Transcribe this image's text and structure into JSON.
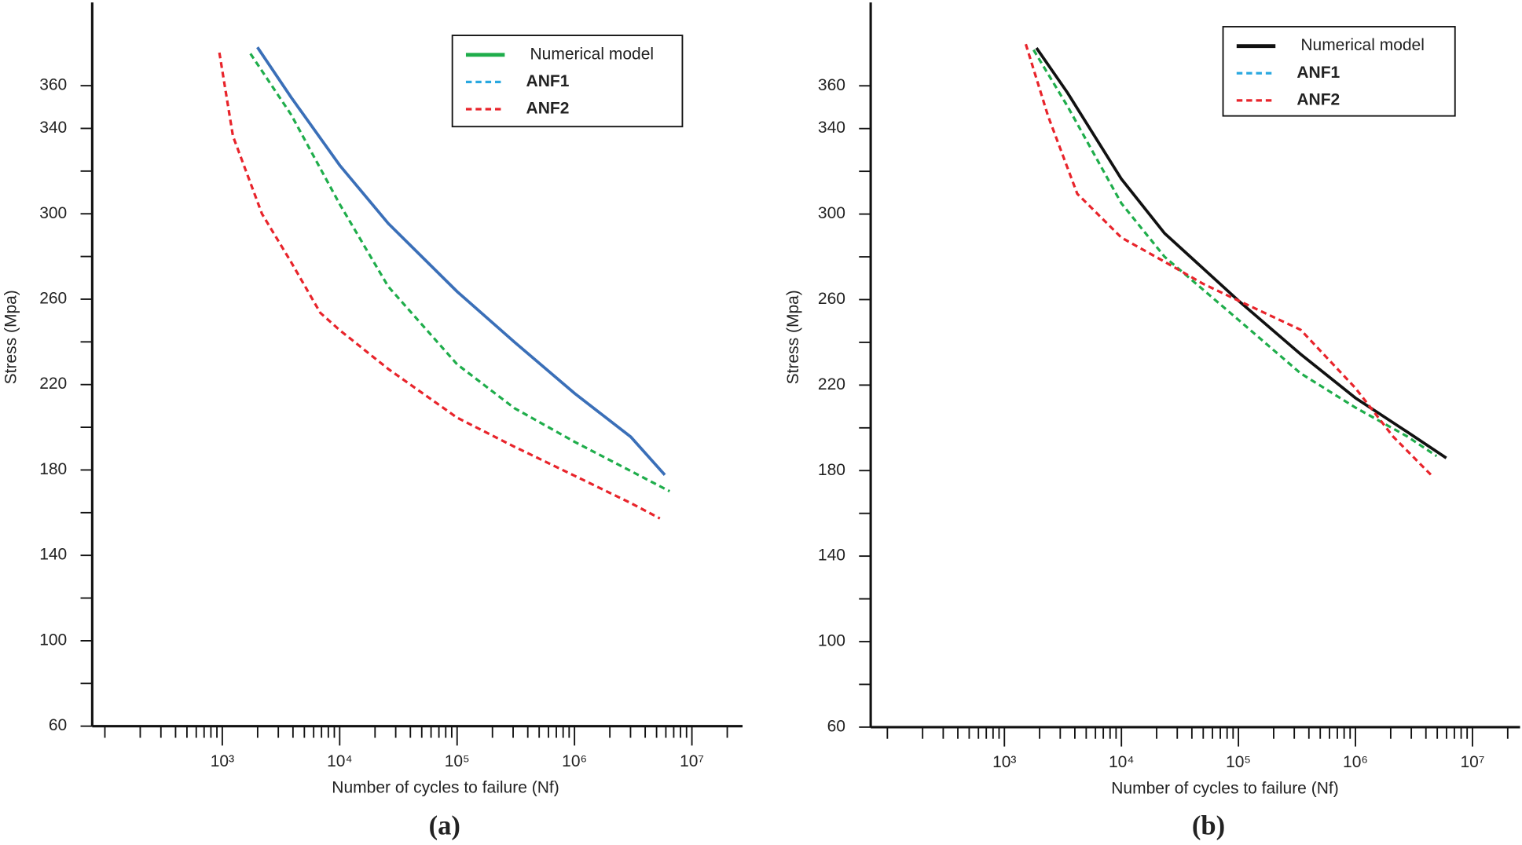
{
  "chart_data": [
    {
      "type": "line",
      "caption": "(a)",
      "xlabel": "Number of cycles to failure (Nf)",
      "ylabel": "Stress (Mpa)",
      "xscale": "log",
      "xlim": [
        78,
        27000000
      ],
      "ylim": [
        60,
        399
      ],
      "xticks": [
        {
          "value": 1000,
          "label": "10³"
        },
        {
          "value": 10000,
          "label": "10⁴"
        },
        {
          "value": 100000,
          "label": "10⁵"
        },
        {
          "value": 1000000,
          "label": "10⁶"
        },
        {
          "value": 10000000,
          "label": "10⁷"
        }
      ],
      "xminorticks": [
        100,
        200,
        300,
        400,
        500,
        600,
        700,
        800,
        900,
        2000,
        3000,
        4000,
        5000,
        6000,
        7000,
        8000,
        9000,
        20000,
        30000,
        40000,
        50000,
        60000,
        70000,
        80000,
        90000,
        200000,
        300000,
        400000,
        500000,
        600000,
        700000,
        800000,
        900000,
        2000000,
        3000000,
        4000000,
        5000000,
        6000000,
        7000000,
        8000000,
        9000000,
        20000000
      ],
      "yticks": [
        60,
        100,
        140,
        180,
        220,
        260,
        300,
        340,
        360
      ],
      "yminorticks": [
        80,
        120,
        160,
        200,
        240,
        280,
        320
      ],
      "series": [
        {
          "name": "Numerical model",
          "color": "#3a6fb8",
          "legend_color": "#1fad4b",
          "dashed": false,
          "x": [
            1990,
            3860,
            10000,
            25900,
            100000,
            307000,
            1000000,
            3010000,
            5880000
          ],
          "values": [
            378,
            354.5,
            322.7,
            295.5,
            263.6,
            240,
            215.9,
            195.5,
            177.7
          ]
        },
        {
          "name": "ANF1",
          "color": "#1fad4b",
          "legend_color": "#29a8e0",
          "dashed": true,
          "x": [
            1738,
            3860,
            10000,
            25900,
            100000,
            307000,
            1000000,
            3010000,
            6460000
          ],
          "values": [
            375,
            346.4,
            304.5,
            265.9,
            229.5,
            209,
            193.2,
            179.5,
            170
          ]
        },
        {
          "name": "ANF2",
          "color": "#e8242b",
          "legend_color": "#e8242b",
          "dashed": true,
          "x": [
            944,
            1233,
            2180,
            3860,
            6840,
            10000,
            25900,
            100000,
            307000,
            1000000,
            3010000,
            5330000
          ],
          "values": [
            375.5,
            336.4,
            300,
            277.3,
            253.6,
            245.5,
            227.3,
            204.5,
            190.9,
            177.3,
            164.5,
            157.3
          ]
        }
      ]
    },
    {
      "type": "line",
      "caption": "(b)",
      "xlabel": "Number of cycles to failure (Nf)",
      "ylabel": "Stress (Mpa)",
      "xscale": "log",
      "xlim": [
        72,
        25500000
      ],
      "ylim": [
        60,
        399
      ],
      "xticks": [
        {
          "value": 1000,
          "label": "10³"
        },
        {
          "value": 10000,
          "label": "10⁴"
        },
        {
          "value": 100000,
          "label": "10⁵"
        },
        {
          "value": 1000000,
          "label": "10⁶"
        },
        {
          "value": 10000000,
          "label": "10⁷"
        }
      ],
      "xminorticks": [
        100,
        200,
        300,
        400,
        500,
        600,
        700,
        800,
        900,
        2000,
        3000,
        4000,
        5000,
        6000,
        7000,
        8000,
        9000,
        20000,
        30000,
        40000,
        50000,
        60000,
        70000,
        80000,
        90000,
        200000,
        300000,
        400000,
        500000,
        600000,
        700000,
        800000,
        900000,
        2000000,
        3000000,
        4000000,
        5000000,
        6000000,
        7000000,
        8000000,
        9000000,
        20000000
      ],
      "yticks": [
        60,
        100,
        140,
        180,
        220,
        260,
        300,
        340,
        360
      ],
      "yminorticks": [
        80,
        120,
        160,
        200,
        240,
        280,
        320
      ],
      "series": [
        {
          "name": "Numerical model",
          "color": "#111111",
          "legend_color": "#111111",
          "dashed": false,
          "x": [
            1880,
            3460,
            10000,
            23400,
            100000,
            340000,
            1000000,
            2780000,
            5970000
          ],
          "values": [
            377.7,
            356.8,
            316.4,
            291,
            259.5,
            234.5,
            214,
            198,
            185.9
          ]
        },
        {
          "name": "ANF1",
          "color": "#1fad4b",
          "legend_color": "#29a8e0",
          "dashed": true,
          "x": [
            1776,
            3460,
            10000,
            23400,
            100000,
            340000,
            1000000,
            2780000,
            4930000
          ],
          "values": [
            376.8,
            350.5,
            305,
            280,
            250.5,
            225.5,
            209.5,
            195.9,
            186.8
          ]
        },
        {
          "name": "ANF2",
          "color": "#e8242b",
          "legend_color": "#e8242b",
          "dashed": true,
          "x": [
            1523,
            2360,
            4190,
            10000,
            23400,
            50200,
            100000,
            340000,
            1000000,
            2090000,
            4480000
          ],
          "values": [
            379.5,
            345.9,
            309.5,
            289,
            277.7,
            267.3,
            259.5,
            245.9,
            218.6,
            196,
            177.7
          ]
        }
      ]
    }
  ]
}
